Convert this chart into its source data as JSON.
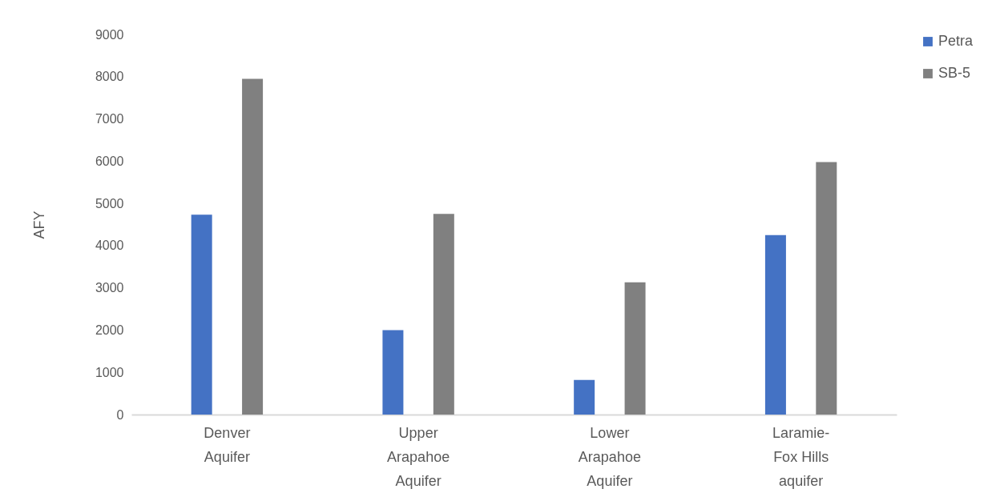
{
  "chart_data": {
    "type": "bar",
    "ylabel": "AFY",
    "categories": [
      "Denver Aquifer",
      "Upper Arapahoe Aquifer",
      "Lower Arapahoe Aquifer",
      "Laramie-Fox Hills aquifer"
    ],
    "series": [
      {
        "name": "Petra",
        "color": "#4472c4",
        "values": [
          4730,
          2000,
          820,
          4250
        ]
      },
      {
        "name": "SB-5",
        "color": "#808080",
        "values": [
          7950,
          4750,
          3130,
          5980
        ]
      }
    ],
    "ylim": [
      0,
      9000
    ],
    "yticks": [
      0,
      1000,
      2000,
      3000,
      4000,
      5000,
      6000,
      7000,
      8000,
      9000
    ],
    "grid": false,
    "legend": "right"
  }
}
